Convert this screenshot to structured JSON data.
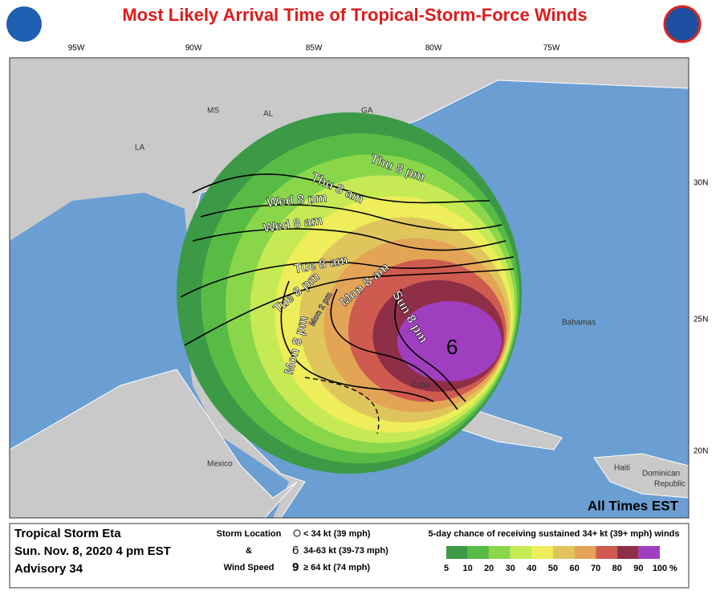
{
  "title": "Most Likely Arrival Time of Tropical-Storm-Force Winds",
  "longitudes": [
    "95W",
    "90W",
    "85W",
    "80W",
    "75W"
  ],
  "latitudes": [
    "30N",
    "25N",
    "20N"
  ],
  "places": [
    "MS",
    "AL",
    "GA",
    "LA",
    "Mexico",
    "Cuba",
    "Bahamas",
    "Haiti",
    "Dominican",
    "Republic"
  ],
  "times_note": "All Times EST",
  "arrival_labels": [
    "Thu 8 pm",
    "Thu 8 am",
    "Wed 8 pm",
    "Wed 8 am",
    "Tue 8 am",
    "Tue 8 pm",
    "Mon 2 pm",
    "Mon 8 am",
    "Mon 8 pm",
    "Sun 8 pm"
  ],
  "legend": {
    "storm": "Tropical Storm Eta",
    "date": "Sun. Nov. 8, 2020  4 pm EST",
    "advisory": "Advisory 34",
    "storm_location": "Storm Location",
    "amp": "&",
    "wind_speed": "Wind Speed",
    "symbols": [
      "< 34 kt (39 mph)",
      "34-63 kt (39-73 mph)",
      "≥ 64 kt (74 mph)"
    ],
    "scale_title": "5-day chance of receiving sustained 34+ kt (39+ mph) winds",
    "scale_values": [
      5,
      10,
      20,
      30,
      40,
      50,
      60,
      70,
      80,
      90,
      100
    ],
    "scale_unit": "%",
    "scale_colors": [
      "#3c9a46",
      "#57bb45",
      "#8ad64b",
      "#c6ea54",
      "#eeed5a",
      "#dfc55b",
      "#e4a456",
      "#cf5a50",
      "#8e2f47",
      "#9f3fbf"
    ]
  }
}
